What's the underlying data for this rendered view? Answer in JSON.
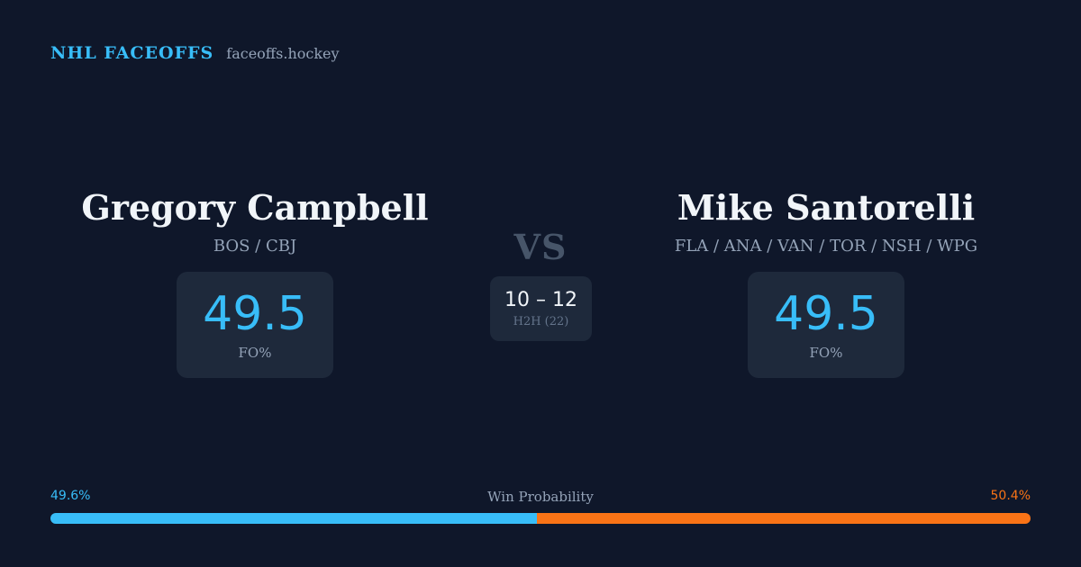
{
  "brand": {
    "name": "NHL FACEOFFS",
    "url": "faceoffs.hockey"
  },
  "player_left": {
    "name": "Gregory Campbell",
    "teams": "BOS / CBJ",
    "fo_value": "49.5",
    "fo_label": "FO%"
  },
  "player_right": {
    "name": "Mike Santorelli",
    "teams": "FLA / ANA / VAN / TOR / NSH / WPG",
    "fo_value": "49.5",
    "fo_label": "FO%"
  },
  "versus": {
    "label": "VS",
    "h2h_score": "10 – 12",
    "h2h_label": "H2H (22)"
  },
  "win_probability": {
    "title": "Win Probability",
    "left_label": "49.6%",
    "right_label": "50.4%",
    "left_fraction": 0.496,
    "left_color": "#38bdf8",
    "right_color": "#f97316"
  }
}
